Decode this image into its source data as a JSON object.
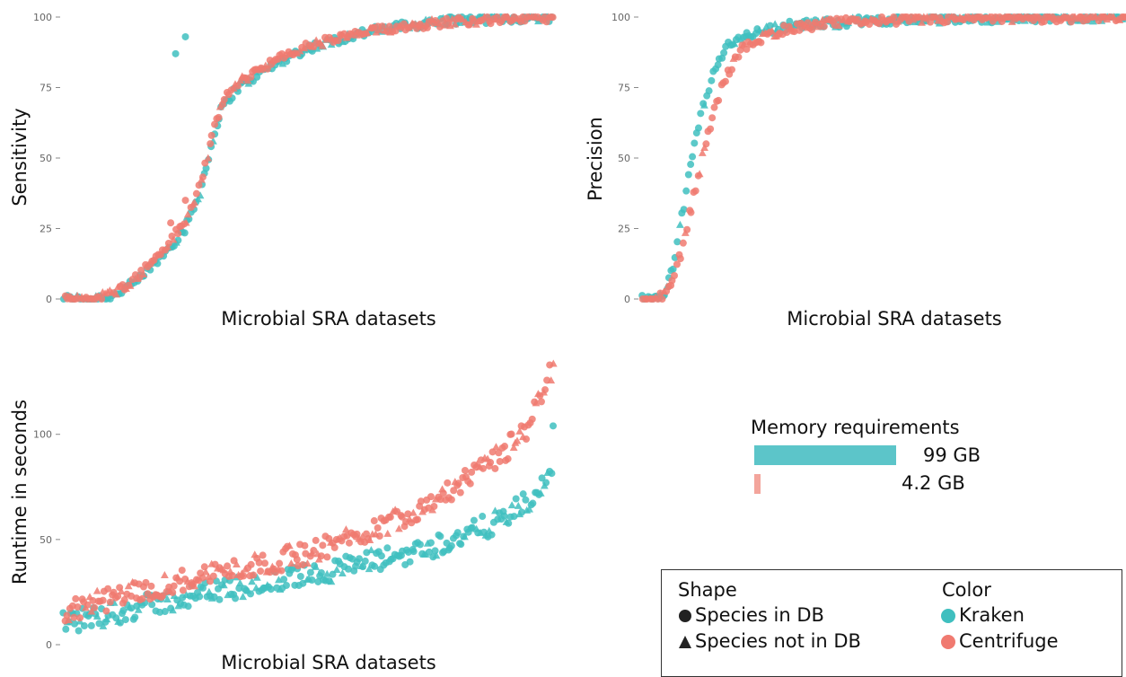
{
  "chart_data": [
    {
      "type": "scatter",
      "id": "sensitivity",
      "title": "",
      "xlabel": "Microbial SRA datasets",
      "ylabel": "Sensitivity",
      "ylim": [
        0,
        100
      ],
      "yticks": [
        "0",
        "25",
        "50",
        "75",
        "100"
      ],
      "x_axis": "datasets ordered by value (no tick labels)",
      "grid": false,
      "series": [
        {
          "name": "Kraken",
          "color": "#3fbfbf",
          "curve": [
            [
              0,
              0
            ],
            [
              0.05,
              0
            ],
            [
              0.1,
              1
            ],
            [
              0.15,
              6
            ],
            [
              0.2,
              15
            ],
            [
              0.25,
              25
            ],
            [
              0.28,
              38
            ],
            [
              0.3,
              52
            ],
            [
              0.32,
              66
            ],
            [
              0.35,
              74
            ],
            [
              0.4,
              80
            ],
            [
              0.45,
              85
            ],
            [
              0.5,
              89
            ],
            [
              0.6,
              94
            ],
            [
              0.7,
              97
            ],
            [
              0.8,
              99
            ],
            [
              0.9,
              99.5
            ],
            [
              1,
              100
            ]
          ],
          "outliers": [
            [
              0.23,
              87
            ],
            [
              0.25,
              93
            ]
          ]
        },
        {
          "name": "Centrifuge",
          "color": "#f07a70",
          "curve": [
            [
              0,
              0
            ],
            [
              0.05,
              0
            ],
            [
              0.1,
              2
            ],
            [
              0.15,
              8
            ],
            [
              0.2,
              17
            ],
            [
              0.25,
              28
            ],
            [
              0.28,
              42
            ],
            [
              0.3,
              56
            ],
            [
              0.32,
              69
            ],
            [
              0.35,
              76
            ],
            [
              0.4,
              82
            ],
            [
              0.45,
              86
            ],
            [
              0.5,
              90
            ],
            [
              0.6,
              94
            ],
            [
              0.7,
              97
            ],
            [
              0.8,
              98.5
            ],
            [
              0.9,
              99.5
            ],
            [
              1,
              100
            ]
          ],
          "outliers": [
            [
              0.22,
              27
            ],
            [
              0.25,
              35
            ]
          ]
        }
      ]
    },
    {
      "type": "scatter",
      "id": "precision",
      "title": "",
      "xlabel": "Microbial SRA datasets",
      "ylabel": "Precision",
      "ylim": [
        0,
        100
      ],
      "yticks": [
        "0",
        "25",
        "50",
        "75",
        "100"
      ],
      "x_axis": "datasets ordered by value (no tick labels)",
      "grid": false,
      "series": [
        {
          "name": "Kraken",
          "color": "#3fbfbf",
          "curve": [
            [
              0,
              0
            ],
            [
              0.03,
              0
            ],
            [
              0.05,
              1
            ],
            [
              0.07,
              15
            ],
            [
              0.09,
              35
            ],
            [
              0.11,
              55
            ],
            [
              0.13,
              70
            ],
            [
              0.15,
              80
            ],
            [
              0.17,
              88
            ],
            [
              0.2,
              93
            ],
            [
              0.25,
              95
            ],
            [
              0.3,
              97
            ],
            [
              0.4,
              98
            ],
            [
              0.5,
              99
            ],
            [
              0.7,
              99.5
            ],
            [
              1,
              100
            ]
          ],
          "outliers": []
        },
        {
          "name": "Centrifuge",
          "color": "#f07a70",
          "curve": [
            [
              0,
              0
            ],
            [
              0.03,
              0
            ],
            [
              0.05,
              2
            ],
            [
              0.07,
              10
            ],
            [
              0.09,
              24
            ],
            [
              0.11,
              40
            ],
            [
              0.13,
              55
            ],
            [
              0.15,
              68
            ],
            [
              0.17,
              78
            ],
            [
              0.2,
              88
            ],
            [
              0.25,
              93
            ],
            [
              0.3,
              96
            ],
            [
              0.4,
              98
            ],
            [
              0.5,
              99
            ],
            [
              0.7,
              99.5
            ],
            [
              1,
              100
            ]
          ],
          "outliers": []
        }
      ]
    },
    {
      "type": "scatter",
      "id": "runtime",
      "title": "",
      "xlabel": "Microbial SRA datasets",
      "ylabel": "Runtime in seconds",
      "ylim": [
        0,
        140
      ],
      "yticks": [
        "0",
        "50",
        "100"
      ],
      "x_axis": "datasets ordered by value (no tick labels)",
      "grid": false,
      "series": [
        {
          "name": "Kraken",
          "color": "#3fbfbf",
          "curve": [
            [
              0,
              10
            ],
            [
              0.1,
              15
            ],
            [
              0.2,
              20
            ],
            [
              0.3,
              25
            ],
            [
              0.4,
              29
            ],
            [
              0.5,
              33
            ],
            [
              0.6,
              38
            ],
            [
              0.7,
              43
            ],
            [
              0.8,
              50
            ],
            [
              0.9,
              60
            ],
            [
              0.95,
              68
            ],
            [
              1,
              80
            ]
          ],
          "outliers": [
            [
              1,
              104
            ]
          ]
        },
        {
          "name": "Centrifuge",
          "color": "#f07a70",
          "curve": [
            [
              0,
              16
            ],
            [
              0.1,
              22
            ],
            [
              0.2,
              28
            ],
            [
              0.3,
              34
            ],
            [
              0.4,
              38
            ],
            [
              0.5,
              44
            ],
            [
              0.6,
              52
            ],
            [
              0.7,
              62
            ],
            [
              0.8,
              75
            ],
            [
              0.9,
              92
            ],
            [
              0.95,
              105
            ],
            [
              1,
              135
            ]
          ],
          "outliers": []
        }
      ]
    }
  ],
  "memory": {
    "title": "Memory requirements",
    "bars": [
      {
        "tool": "Kraken",
        "value_gb": 99,
        "label": "99 GB",
        "color": "#5cc5c9"
      },
      {
        "tool": "Centrifuge",
        "value_gb": 4.2,
        "label": "4.2 GB",
        "color": "#f3a59c"
      }
    ]
  },
  "legend": {
    "shape_heading": "Shape",
    "shape_items": [
      {
        "label": "Species in DB",
        "symbol": "circle"
      },
      {
        "label": "Species not in DB",
        "symbol": "triangle"
      }
    ],
    "color_heading": "Color",
    "color_items": [
      {
        "label": "Kraken",
        "color": "#3fbfbf"
      },
      {
        "label": "Centrifuge",
        "color": "#f07a70"
      }
    ]
  }
}
